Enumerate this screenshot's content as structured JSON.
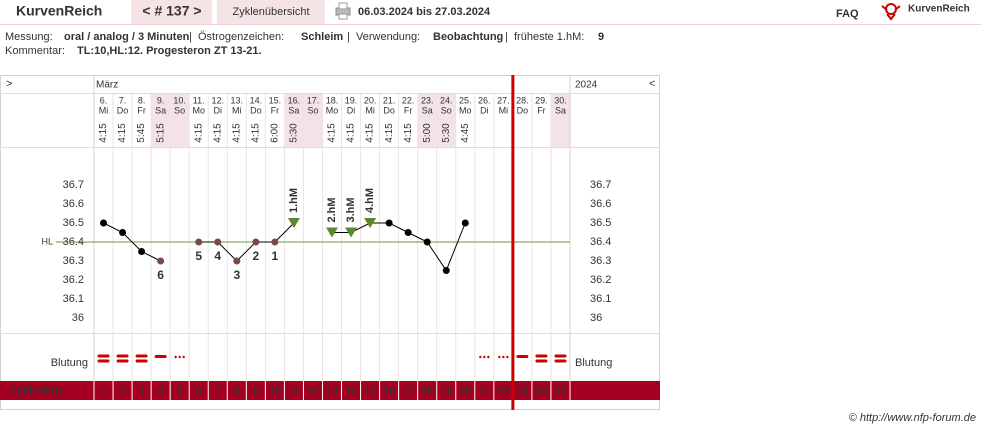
{
  "header": {
    "brand": "KurvenReich",
    "cycle_nav": "< # 137 >",
    "overview_tab": "Zyklenübersicht",
    "date_range": "06.03.2024 bis 27.03.2024",
    "faq": "FAQ",
    "logo_text": "KurvenReich"
  },
  "info": {
    "separator": "|",
    "items": [
      {
        "label": "Messung:",
        "value": "oral / analog / 3 Minuten"
      },
      {
        "label": "Östrogenzeichen:",
        "value": "Schleim"
      },
      {
        "label": "Verwendung:",
        "value": "Beobachtung"
      },
      {
        "label": "früheste 1.hM:",
        "value": "9"
      }
    ],
    "comment_label": "Kommentar:",
    "comment": "TL:10,HL:12. Progesteron ZT 13-21."
  },
  "chart_data": {
    "type": "line",
    "nav_prev": ">",
    "nav_next": "<",
    "month": "März",
    "year": "2024",
    "categories": [
      "6.",
      "7.",
      "8.",
      "9.",
      "10.",
      "11.",
      "12.",
      "13.",
      "14.",
      "15.",
      "16.",
      "17.",
      "18.",
      "19.",
      "20.",
      "21.",
      "22.",
      "23.",
      "24.",
      "25.",
      "26.",
      "27.",
      "28.",
      "29.",
      "30."
    ],
    "weekdays": [
      "Mi",
      "Do",
      "Fr",
      "Sa",
      "So",
      "Mo",
      "Di",
      "Mi",
      "Do",
      "Fr",
      "Sa",
      "So",
      "Mo",
      "Di",
      "Mi",
      "Do",
      "Fr",
      "Sa",
      "So",
      "Mo",
      "Di",
      "Mi",
      "Do",
      "Fr",
      "Sa"
    ],
    "times": [
      "4:15",
      "4:15",
      "5:45",
      "5:15",
      null,
      "4:15",
      "4:15",
      "4:15",
      "4:15",
      "6:00",
      "5:30",
      null,
      "4:15",
      "4:15",
      "4:15",
      "4:15",
      "4:15",
      "5:00",
      "5:30",
      "4:45",
      null,
      null,
      null,
      null,
      null
    ],
    "shaded_columns": [
      3,
      4,
      10,
      11,
      17,
      18,
      24
    ],
    "values": [
      36.5,
      36.45,
      36.35,
      36.3,
      null,
      36.4,
      36.4,
      36.3,
      36.4,
      36.4,
      36.5,
      null,
      36.45,
      36.45,
      36.5,
      36.5,
      36.45,
      36.4,
      36.25,
      36.5,
      null,
      null,
      null,
      null,
      null
    ],
    "color": "#000000",
    "low_labels": [
      null,
      null,
      null,
      6,
      null,
      5,
      4,
      3,
      2,
      1,
      null,
      null,
      null,
      null,
      null,
      null,
      null,
      null,
      null,
      null,
      null,
      null,
      null,
      null,
      null
    ],
    "low_color": "#7a4a4a",
    "hm_labels": [
      null,
      null,
      null,
      null,
      null,
      null,
      null,
      null,
      null,
      null,
      "1.hM",
      null,
      "2.hM",
      "3.hM",
      "4.hM",
      null,
      null,
      null,
      null,
      null,
      null,
      null,
      null,
      null,
      null
    ],
    "hm_color": "#5b8a2c",
    "ylim": [
      35.9,
      36.9
    ],
    "yticks": [
      36,
      36.1,
      36.2,
      36.3,
      36.4,
      36.5,
      36.6,
      36.7
    ],
    "coverline": {
      "value": 36.4,
      "label": "HL",
      "color": "#6a9a3a"
    },
    "bleeding_label": "Blutung",
    "bleeding": [
      3,
      3,
      3,
      2,
      1,
      null,
      null,
      null,
      null,
      null,
      null,
      null,
      null,
      null,
      null,
      null,
      null,
      null,
      null,
      null,
      1,
      1,
      2,
      3,
      3
    ],
    "bleeding_color": "#cc0000",
    "cycle_day_label": "Zyklustag",
    "cycle_days": [
      1,
      2,
      3,
      4,
      5,
      6,
      7,
      8,
      9,
      10,
      11,
      12,
      13,
      14,
      15,
      16,
      17,
      18,
      19,
      20,
      21,
      22,
      23,
      24,
      25
    ],
    "today_line": 22,
    "today_color": "#cc0000"
  },
  "footer": "© http://www.nfp-forum.de"
}
